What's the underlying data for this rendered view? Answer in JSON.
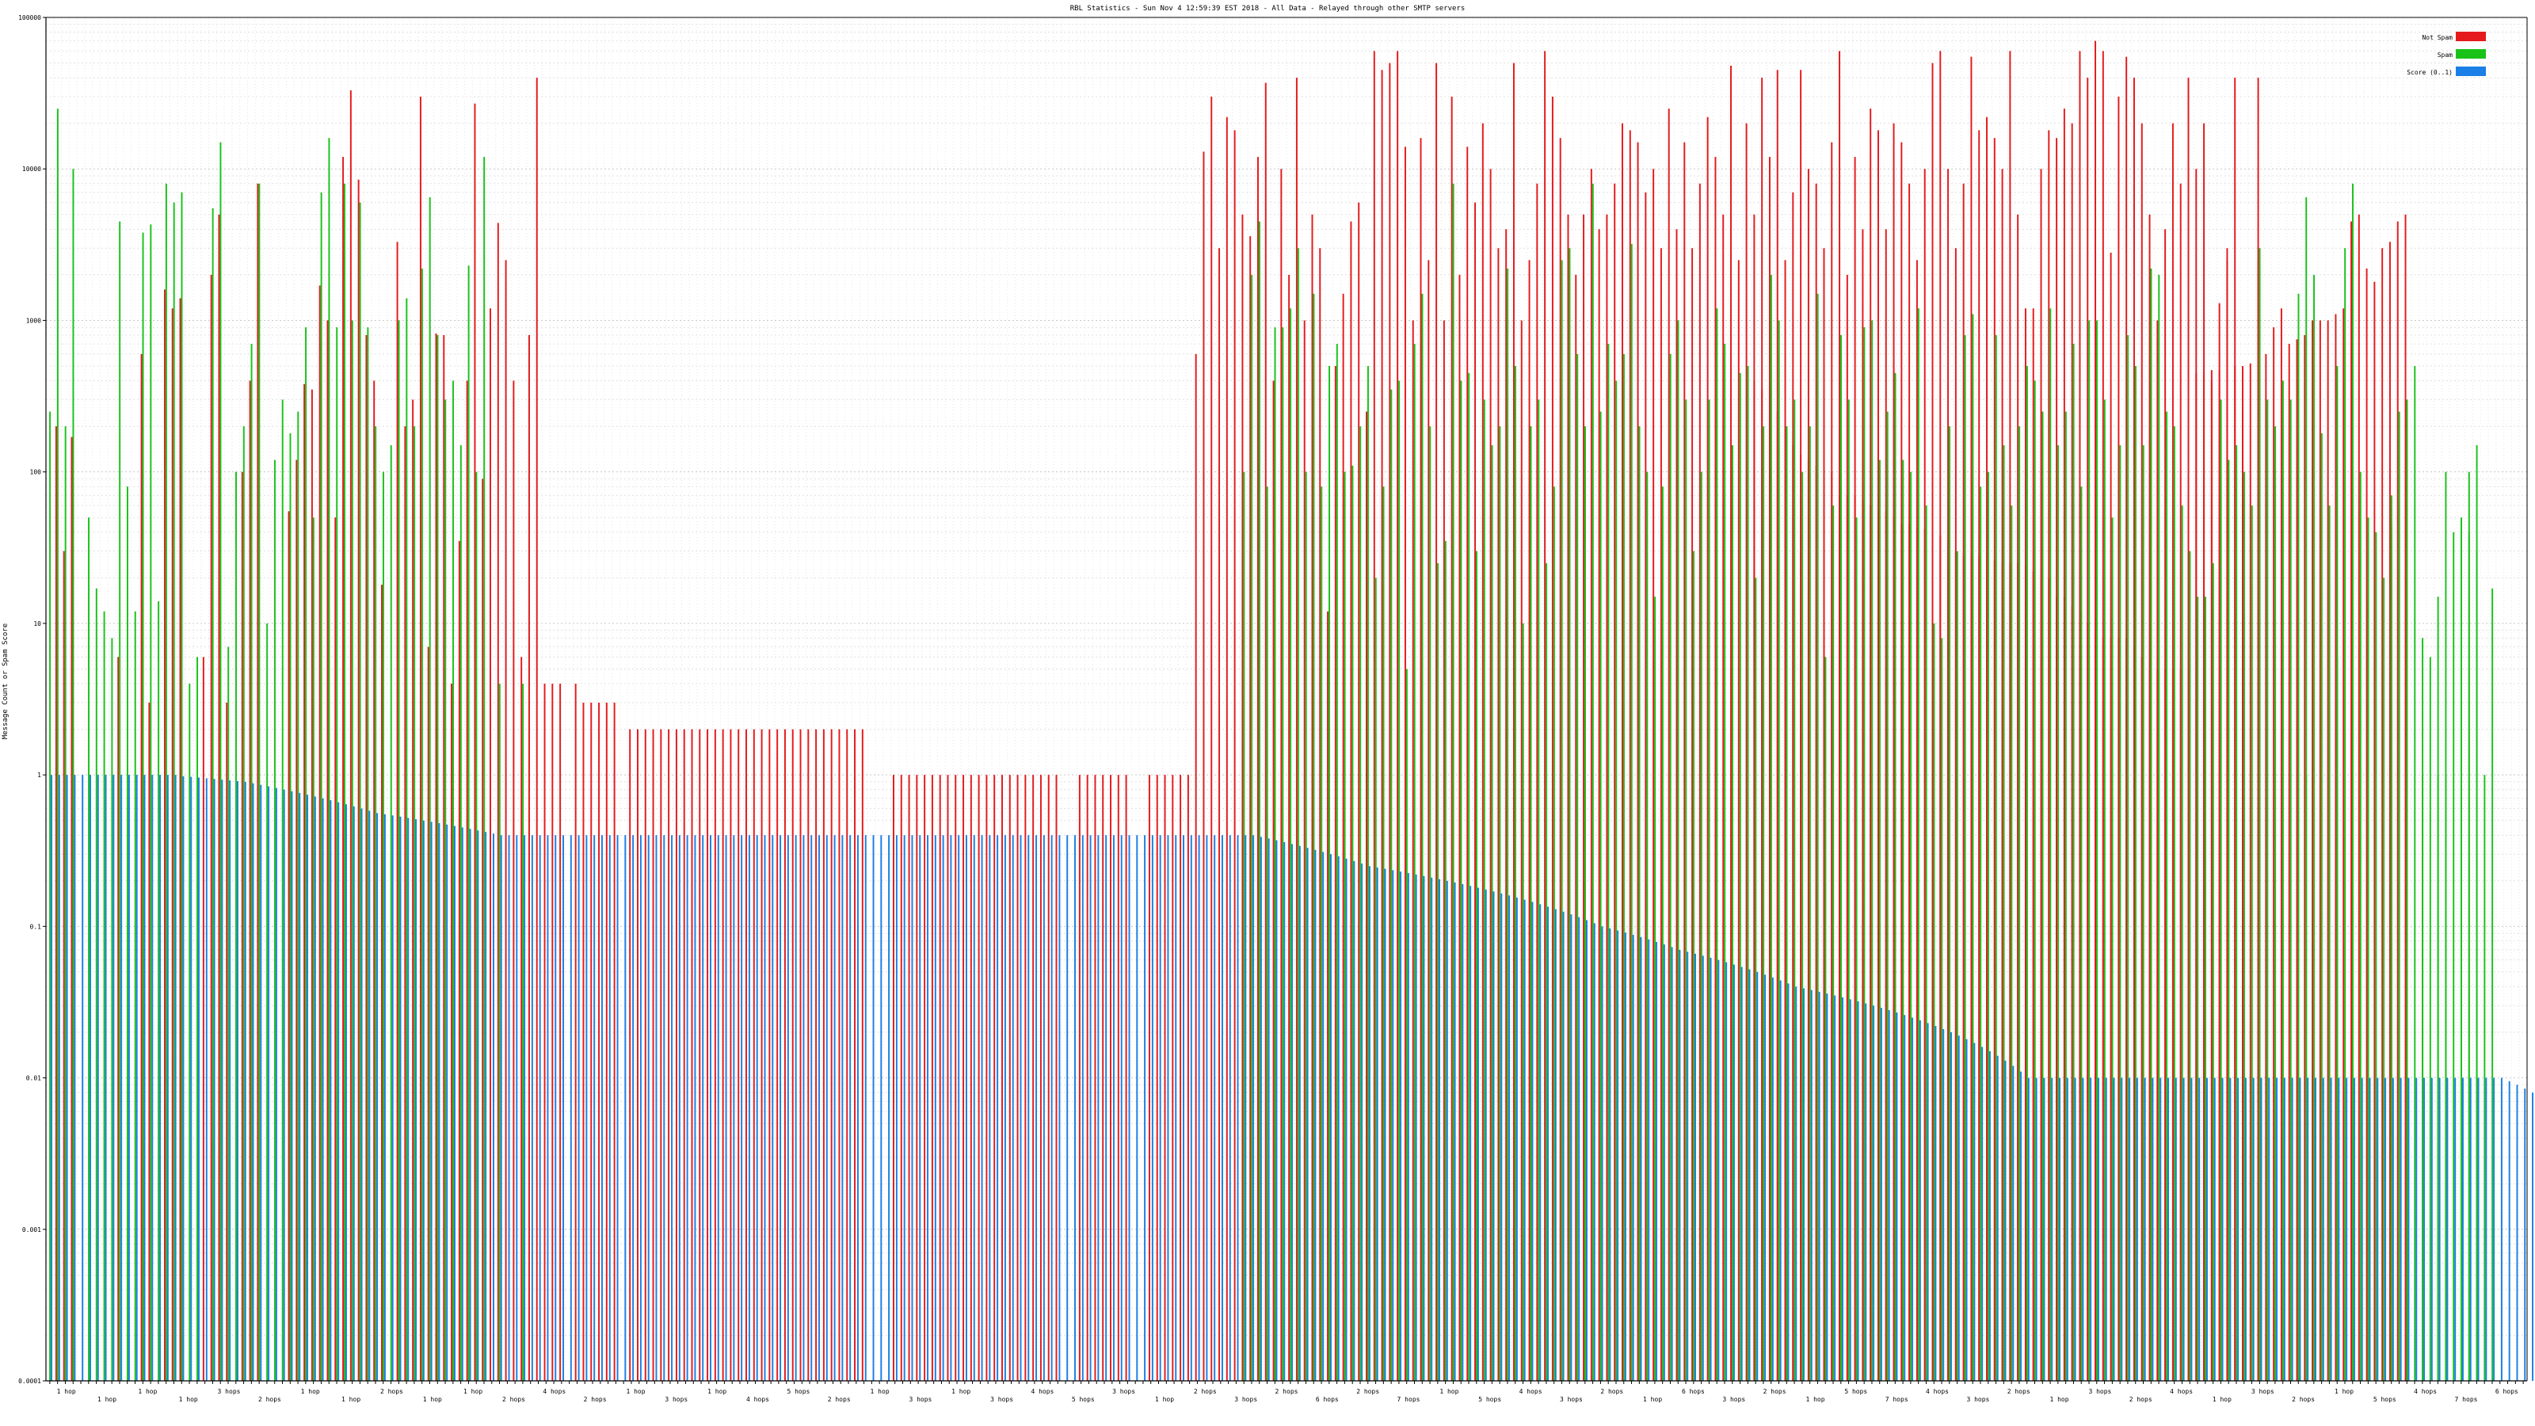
{
  "chart_data": {
    "type": "bar",
    "title": "RBL Statistics - Sun Nov 4 12:59:39 EST 2018 - All Data - Relayed through other SMTP servers",
    "xlabel": "",
    "ylabel": "Message Count or Spam Score",
    "yscale": "log",
    "ylim": [
      0.0001,
      100000
    ],
    "yticks": [
      "0.0001",
      "0.001",
      "0.01",
      "0.1",
      "1",
      "10",
      "100",
      "1000",
      "10000",
      "100000"
    ],
    "grid": true,
    "legend_position": "top-right",
    "legend": [
      {
        "name": "Not Spam",
        "color": "#e41a1c"
      },
      {
        "name": "Spam",
        "color": "#19c219"
      },
      {
        "name": "Score (0..1)",
        "color": "#1a7fe6"
      }
    ],
    "colors": {
      "not_spam": "#e41a1c",
      "spam": "#19c219",
      "score": "#1a7fe6"
    },
    "bar_count": 320,
    "x_group_labels": [
      "1 hop",
      "1 hop",
      "1 hop",
      "1 hop",
      "3 hops",
      "2 hops",
      "1 hop",
      "1 hop",
      "2 hops",
      "1 hop",
      "1 hop",
      "2 hops",
      "4 hops",
      "2 hops",
      "1 hop",
      "3 hops",
      "1 hop",
      "4 hops",
      "5 hops",
      "2 hops",
      "1 hop",
      "3 hops",
      "1 hop",
      "3 hops",
      "4 hops",
      "5 hops",
      "3 hops",
      "1 hop",
      "2 hops",
      "3 hops",
      "2 hops",
      "6 hops",
      "2 hops",
      "7 hops",
      "1 hop",
      "5 hops",
      "4 hops",
      "3 hops",
      "2 hops",
      "1 hop",
      "6 hops",
      "3 hops",
      "2 hops",
      "1 hop",
      "5 hops",
      "7 hops",
      "4 hops",
      "3 hops",
      "2 hops",
      "1 hop",
      "3 hops",
      "2 hops",
      "4 hops",
      "1 hop",
      "3 hops",
      "2 hops",
      "1 hop",
      "5 hops",
      "4 hops",
      "7 hops",
      "6 hops"
    ],
    "series": [
      {
        "name": "Not Spam",
        "key": "not_spam",
        "x_start": 0,
        "values": [
          0.0001,
          200,
          30,
          170,
          0.0001,
          0.0001,
          0.0001,
          0.0001,
          0.0001,
          6,
          0.0001,
          0.0001,
          600,
          3,
          0.0001,
          1600,
          1200,
          1400,
          0.0001,
          0.0001,
          6,
          2000,
          5000,
          3,
          0.0001,
          100,
          400,
          8000,
          0.0001,
          0.0001,
          0.0001,
          55,
          120,
          380,
          350,
          1700,
          1000,
          50,
          12000,
          33000,
          8500,
          800,
          400,
          18,
          0.0001,
          3300,
          200,
          300,
          30000,
          7,
          820,
          800,
          4,
          35,
          400,
          27000,
          90,
          1200,
          4400,
          2500,
          400,
          6,
          800,
          40000,
          4,
          4,
          4,
          0.0001,
          4,
          3,
          3,
          3,
          3,
          3,
          0.0001,
          2,
          2,
          2,
          2,
          2,
          2,
          2,
          2,
          2,
          2,
          2,
          2,
          2,
          2,
          2,
          2,
          2,
          2,
          2,
          2,
          2,
          2,
          2,
          2,
          2,
          2,
          2,
          2,
          2,
          2,
          2,
          0.0001,
          0.0001,
          0.0001,
          1,
          1,
          1,
          1,
          1,
          1,
          1,
          1,
          1,
          1,
          1,
          1,
          1,
          1,
          1,
          1,
          1,
          1,
          1,
          1,
          1,
          1,
          0.0001,
          0.0001,
          1,
          1,
          1,
          1,
          1,
          1,
          1,
          0.0001,
          0.0001,
          1,
          1,
          1,
          1,
          1,
          1,
          600,
          13000,
          30000,
          3000,
          22000,
          18000,
          5000,
          3600,
          12000,
          37000,
          400,
          10000,
          2000,
          40000,
          1000,
          5000,
          3000,
          12,
          500,
          1500,
          4500,
          6000,
          250,
          60000,
          45000,
          50000,
          60000,
          14000,
          1000,
          16000,
          2500,
          50000,
          1000,
          30000,
          2000,
          14000,
          6000,
          20000,
          10000,
          3000,
          4000,
          50000,
          1000,
          2500,
          8000,
          60000,
          30000,
          16000,
          5000,
          2000,
          5000,
          10000,
          4000,
          5000,
          8000,
          20000,
          18000,
          15000,
          7000,
          10000,
          3000,
          25000,
          4000,
          15000,
          3000,
          8000,
          22000,
          12000,
          5000,
          48000,
          2500,
          20000,
          5000,
          40000,
          12000,
          45000,
          2500,
          7000,
          45000,
          10000,
          8000,
          3000,
          15000,
          60000,
          2000,
          12000,
          4000,
          25000,
          18000,
          4000,
          20000,
          15000,
          8000,
          2500,
          10000,
          50000,
          60000,
          10000,
          3000,
          8000,
          55000,
          18000,
          22000,
          16000,
          10000,
          60000,
          5000,
          1200,
          1200,
          10000,
          18000,
          16000,
          25000,
          20000,
          60000,
          40000,
          70000,
          60000,
          2800,
          30000,
          55000,
          40000,
          20000,
          5000,
          1000,
          4000,
          20000,
          8000,
          40000,
          10000,
          20000,
          400,
          1300,
          3000,
          40000,
          250,
          0.0001,
          40000
        ]
      },
      {
        "name": "Not Spam",
        "key": "not_spam",
        "x_start": 220,
        "values": [
          400,
          350,
          350,
          250,
          200,
          150,
          130,
          120,
          110,
          105,
          100,
          70,
          70,
          70,
          65,
          60,
          55,
          55,
          50,
          45,
          45,
          43,
          42,
          40,
          38,
          35,
          30,
          28,
          28,
          28,
          27,
          26,
          25,
          25,
          25,
          24,
          22,
          20,
          20,
          15,
          15,
          13,
          12,
          10,
          9,
          8,
          8,
          8,
          8,
          7,
          6,
          5,
          5,
          5,
          5,
          5,
          5,
          450,
          450,
          470,
          470,
          2500,
          500,
          500,
          520,
          2500,
          600,
          900,
          1200,
          700,
          750,
          800,
          1000,
          1000,
          1000,
          1100,
          1200,
          4500,
          5000,
          2200,
          1800,
          3000,
          3300,
          4500,
          5000
        ]
      },
      {
        "name": "Spam",
        "key": "spam",
        "x_start": 0,
        "values": [
          250,
          25000,
          200,
          10000,
          0.0001,
          50,
          17,
          12,
          8,
          4500,
          80,
          12,
          3800,
          4300,
          14,
          8000,
          6000,
          7000,
          4,
          6,
          0.0001,
          5500,
          15000,
          7,
          100,
          200,
          700,
          8000,
          10,
          120,
          300,
          180,
          250,
          900,
          50,
          7000,
          16000,
          900,
          8000,
          1000,
          6000,
          900,
          200,
          100,
          150,
          1000,
          1400,
          200,
          2200,
          6500,
          800,
          300,
          400,
          150,
          2300,
          100,
          12000,
          0.0001,
          4,
          0.0001,
          0.0001,
          4,
          0.0001,
          0.0001,
          0.0001,
          0.0001,
          0.0001,
          0.0001,
          0.0001,
          0.0001,
          0.0001,
          0.0001,
          0.0001,
          0.0001,
          0.0001,
          0.0001,
          0.0001,
          0.0001,
          0.0001,
          0.0001,
          0.0001,
          0.0001,
          0.0001,
          0.0001,
          0.0001,
          0.0001,
          0.0001,
          0.0001,
          0.0001,
          0.0001,
          0.0001,
          0.0001,
          0.0001,
          0.0001,
          0.0001,
          0.0001,
          0.0001,
          0.0001,
          0.0001,
          0.0001,
          0.0001,
          0.0001,
          0.0001,
          0.0001,
          0.0001,
          0.0001,
          0.0001,
          0.0001,
          0.0001,
          0.0001,
          0.0001,
          0.0001,
          0.0001,
          0.0001,
          0.0001,
          0.0001,
          0.0001,
          0.0001,
          0.0001,
          0.0001,
          0.0001,
          0.0001,
          0.0001,
          0.0001,
          0.0001,
          0.0001,
          0.0001,
          0.0001,
          0.0001,
          0.0001,
          0.0001,
          0.0001,
          0.0001,
          0.0001,
          0.0001,
          0.0001,
          0.0001,
          0.0001,
          0.0001,
          0.0001,
          0.0001,
          0.0001,
          0.0001,
          0.0001,
          0.0001,
          0.0001,
          0.0001,
          0.0001,
          0.0001,
          0.0001,
          0.0001,
          0.0001,
          0.0001,
          0.0001,
          100,
          2000,
          4500,
          80,
          900,
          900,
          1200,
          3000,
          100,
          1500,
          80,
          500,
          700,
          100,
          110,
          200,
          500,
          20,
          80,
          350,
          400,
          5,
          700,
          1500,
          200,
          25,
          35,
          8000,
          400,
          450,
          30,
          300,
          150,
          200,
          2200,
          500,
          10,
          200,
          300,
          25,
          80,
          2500,
          3000,
          600,
          200,
          8000,
          250,
          700,
          400,
          600,
          3200,
          200,
          100,
          15,
          80,
          600,
          1000,
          300,
          30,
          100,
          300,
          1200,
          700,
          150,
          450,
          500,
          20,
          200,
          2000,
          1000,
          200,
          300,
          100,
          200,
          1500,
          6,
          60,
          800,
          300,
          50,
          900,
          1000,
          120,
          250,
          450,
          120,
          100,
          1200,
          60,
          10,
          8,
          200,
          30,
          800,
          1100,
          80,
          100,
          800,
          150,
          60,
          200,
          500,
          400,
          250,
          1200,
          150,
          250,
          700,
          80,
          1000,
          1000,
          300,
          50,
          150,
          800,
          500,
          150,
          2200,
          2000,
          250,
          200,
          60,
          30,
          15,
          15,
          25,
          300,
          120,
          150,
          100,
          60,
          3000,
          300,
          200,
          400,
          300,
          1500,
          6500,
          2000,
          180,
          60,
          500,
          3000,
          8000,
          100,
          50,
          40,
          20,
          45,
          250,
          300,
          500,
          8,
          6,
          15,
          100,
          40,
          50,
          100,
          150,
          1,
          0.0001
        ]
      },
      {
        "name": "Spam",
        "key": "spam",
        "x_start": 291,
        "values": [
          1,
          0.0001,
          0.0001,
          0.0001,
          6,
          0.0001,
          0.0001,
          0.0001,
          14,
          0.0001,
          0.0001,
          70,
          0.0001,
          1,
          0.0001,
          1,
          0.0001,
          1,
          1,
          0.0001,
          0.0001,
          40,
          30,
          0.0001,
          17,
          0.0001,
          0.0001,
          0.0001,
          0.0001
        ]
      },
      {
        "name": "Score (0..1)",
        "key": "score",
        "x_start": 0,
        "values": [
          1,
          1,
          1,
          1,
          1,
          1,
          1,
          1,
          1,
          1,
          1,
          1,
          1,
          1,
          1,
          1,
          1,
          0.98,
          0.97,
          0.96,
          0.95,
          0.94,
          0.93,
          0.92,
          0.91,
          0.9,
          0.88,
          0.86,
          0.84,
          0.82,
          0.8,
          0.78,
          0.76,
          0.74,
          0.72,
          0.7,
          0.68,
          0.66,
          0.64,
          0.62,
          0.6,
          0.58,
          0.56,
          0.55,
          0.54,
          0.53,
          0.52,
          0.51,
          0.5,
          0.49,
          0.48,
          0.47,
          0.46,
          0.45,
          0.44,
          0.43,
          0.42,
          0.41,
          0.4,
          0.4,
          0.4,
          0.4,
          0.4,
          0.4,
          0.4,
          0.4,
          0.4,
          0.4,
          0.4,
          0.4,
          0.4,
          0.4,
          0.4,
          0.4,
          0.4,
          0.4,
          0.4,
          0.4,
          0.4,
          0.4,
          0.4,
          0.4,
          0.4,
          0.4,
          0.4,
          0.4,
          0.4,
          0.4,
          0.4,
          0.4,
          0.4,
          0.4,
          0.4,
          0.4,
          0.4,
          0.4,
          0.4,
          0.4,
          0.4,
          0.4,
          0.4,
          0.4,
          0.4,
          0.4,
          0.4,
          0.4,
          0.4,
          0.4,
          0.4,
          0.4,
          0.4,
          0.4,
          0.4,
          0.4,
          0.4,
          0.4,
          0.4,
          0.4,
          0.4,
          0.4,
          0.4,
          0.4,
          0.4,
          0.4,
          0.4,
          0.4,
          0.4,
          0.4,
          0.4,
          0.4,
          0.4,
          0.4,
          0.4,
          0.4,
          0.4,
          0.4,
          0.4,
          0.4,
          0.4,
          0.4,
          0.4,
          0.4,
          0.4,
          0.4,
          0.4,
          0.4,
          0.4,
          0.4,
          0.4,
          0.4,
          0.4,
          0.4,
          0.4,
          0.4,
          0.4,
          0.4,
          0.39,
          0.38,
          0.37,
          0.36,
          0.35,
          0.34,
          0.33,
          0.32,
          0.31,
          0.3,
          0.29,
          0.28,
          0.27,
          0.26,
          0.25,
          0.245,
          0.24,
          0.235,
          0.23,
          0.225,
          0.22,
          0.215,
          0.21,
          0.205,
          0.2,
          0.195,
          0.19,
          0.185,
          0.18,
          0.175,
          0.17,
          0.165,
          0.16,
          0.155,
          0.15,
          0.145,
          0.14,
          0.135,
          0.13,
          0.125,
          0.12,
          0.115,
          0.11,
          0.105,
          0.1,
          0.097,
          0.094,
          0.091,
          0.088,
          0.085,
          0.082,
          0.079,
          0.076,
          0.073,
          0.07,
          0.068,
          0.066,
          0.064,
          0.062,
          0.06,
          0.058,
          0.056,
          0.054,
          0.052,
          0.05,
          0.048,
          0.046,
          0.044,
          0.042,
          0.04,
          0.039,
          0.038,
          0.037,
          0.036,
          0.035,
          0.034,
          0.033,
          0.032,
          0.031,
          0.03,
          0.029,
          0.028,
          0.027,
          0.026,
          0.025,
          0.024,
          0.023,
          0.022,
          0.021,
          0.02,
          0.019,
          0.018,
          0.017,
          0.016,
          0.015,
          0.014,
          0.013,
          0.012,
          0.011,
          0.01,
          0.01,
          0.01,
          0.01,
          0.01,
          0.01,
          0.01,
          0.01,
          0.01,
          0.01,
          0.01,
          0.01,
          0.01,
          0.01,
          0.01,
          0.01,
          0.01,
          0.01,
          0.01,
          0.01,
          0.01,
          0.01,
          0.01,
          0.01,
          0.01,
          0.01,
          0.01,
          0.01,
          0.01,
          0.01,
          0.01,
          0.01,
          0.01,
          0.01,
          0.01,
          0.01,
          0.01,
          0.01,
          0.01,
          0.01,
          0.01,
          0.01,
          0.01,
          0.01,
          0.01,
          0.01,
          0.01,
          0.01,
          0.01,
          0.01,
          0.01,
          0.01,
          0.01,
          0.01,
          0.01,
          0.01,
          0.01,
          0.01,
          0.01,
          0.01,
          0.01,
          0.01,
          0.0095,
          0.009,
          0.0085,
          0.008,
          0.0075,
          0.007,
          0.0065,
          0.006,
          0.0057,
          0.0054,
          0.0051,
          0.0048,
          0.0045,
          0.0042,
          0.004,
          0.0038,
          0.0036,
          0.0034,
          0.0032,
          0.003,
          0.0028,
          0.0026,
          0.0024,
          0.0022,
          0.002,
          0.0016,
          0.0011,
          0.0009
        ]
      }
    ]
  }
}
